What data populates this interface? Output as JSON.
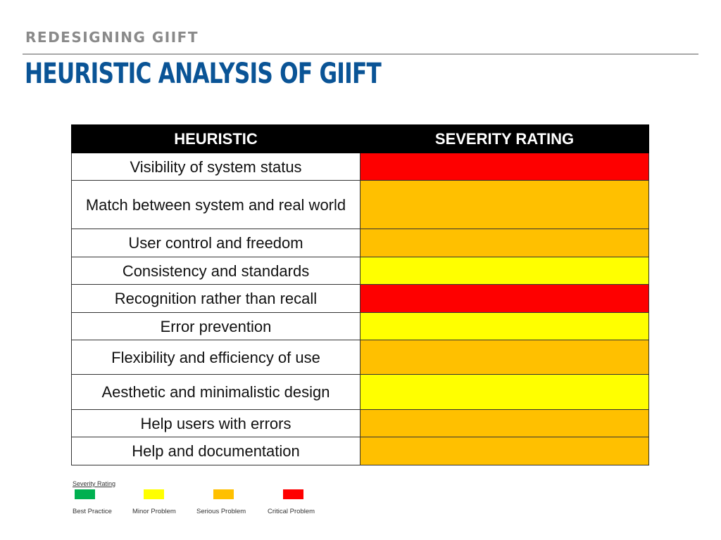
{
  "header": {
    "kicker": "REDESIGNING GIIFT",
    "title": "HEURISTIC ANALYSIS OF GIIFT"
  },
  "table": {
    "columns": [
      "HEURISTIC",
      "SEVERITY RATING"
    ],
    "rows": [
      {
        "heuristic": "Visibility of system status",
        "severity": "Critical Problem",
        "color": "#fe0000"
      },
      {
        "heuristic": "Match between system and real world",
        "severity": "Serious Problem",
        "color": "#ffc000"
      },
      {
        "heuristic": "User control and freedom",
        "severity": "Serious Problem",
        "color": "#ffc000"
      },
      {
        "heuristic": "Consistency and standards",
        "severity": "Minor Problem",
        "color": "#ffff00"
      },
      {
        "heuristic": "Recognition rather than recall",
        "severity": "Critical Problem",
        "color": "#fe0000"
      },
      {
        "heuristic": "Error prevention",
        "severity": "Minor Problem",
        "color": "#ffff00"
      },
      {
        "heuristic": "Flexibility and efficiency of use",
        "severity": "Serious Problem",
        "color": "#ffc000"
      },
      {
        "heuristic": "Aesthetic and minimalistic design",
        "severity": "Minor Problem",
        "color": "#ffff00"
      },
      {
        "heuristic": "Help users with errors",
        "severity": "Serious Problem",
        "color": "#ffc000"
      },
      {
        "heuristic": "Help and documentation",
        "severity": "Serious Problem",
        "color": "#ffc000"
      }
    ]
  },
  "legend": {
    "title": "Severity Rating",
    "items": [
      {
        "label": "Best Practice",
        "color": "#00b050"
      },
      {
        "label": "Minor Problem",
        "color": "#ffff00"
      },
      {
        "label": "Serious Problem",
        "color": "#ffc000"
      },
      {
        "label": "Critical Problem",
        "color": "#fe0000"
      }
    ]
  }
}
